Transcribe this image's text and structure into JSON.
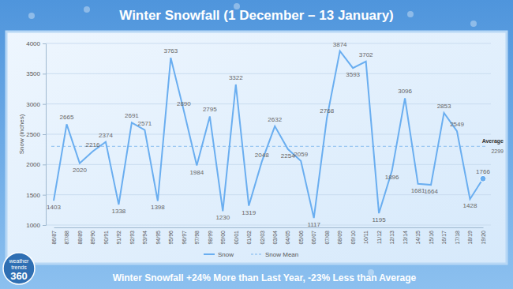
{
  "chart_data": {
    "type": "line",
    "title": "Winter Snowfall (1 December – 13 January)",
    "y_label": "Snow (inches)",
    "footer": "Winter Snowfall +24% More than Last Year, -23% Less than Average",
    "logo": [
      "weather",
      "trends",
      "360"
    ],
    "categories": [
      "86/87",
      "87/88",
      "88/89",
      "89/90",
      "90/91",
      "91/92",
      "92/93",
      "93/94",
      "94/95",
      "95/96",
      "96/97",
      "97/98",
      "98/99",
      "99/00",
      "00/01",
      "01/02",
      "02/03",
      "03/04",
      "04/05",
      "05/06",
      "06/07",
      "07/08",
      "08/09",
      "09/10",
      "10/11",
      "11/12",
      "12/13",
      "13/14",
      "14/15",
      "15/16",
      "16/17",
      "17/18",
      "18/19",
      "19/20"
    ],
    "series": [
      {
        "name": "Snow",
        "color": "#6aaef0",
        "values": [
          1403,
          2665,
          2020,
          2216,
          2374,
          1338,
          2691,
          2571,
          1398,
          3763,
          2890,
          1984,
          2795,
          1230,
          3322,
          1319,
          2048,
          2632,
          2254,
          2059,
          1117,
          2768,
          3874,
          3593,
          3702,
          1195,
          1896,
          3096,
          1681,
          1664,
          2853,
          2549,
          1428,
          1766
        ]
      }
    ],
    "mean": {
      "name": "Snow Mean",
      "value": 2299,
      "label": "Average",
      "color": "#9cc8f2",
      "line_style": "dashed"
    },
    "ylim": [
      1000,
      4000
    ],
    "yticks": [
      1000,
      1500,
      2000,
      2500,
      3000,
      3500,
      4000
    ],
    "grid": true,
    "data_labels": true,
    "legend": "bottom"
  }
}
